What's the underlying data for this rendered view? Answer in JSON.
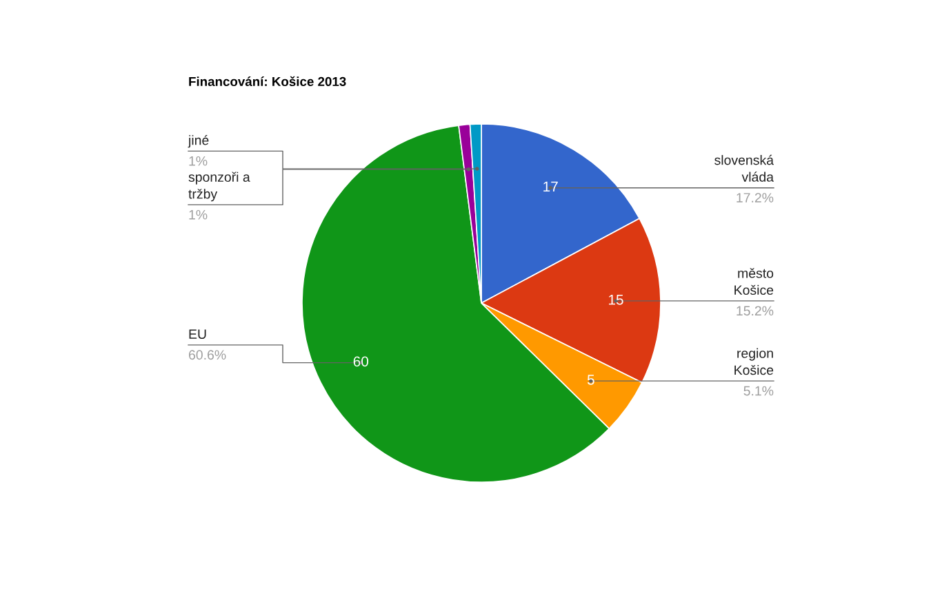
{
  "chart_data": {
    "type": "pie",
    "title": "Financování: Košice 2013",
    "categories": [
      "slovenská\nvláda",
      "město\nKošice",
      "region\nKošice",
      "EU",
      "sponzoři a\ntržby",
      "jiné"
    ],
    "values": [
      17,
      15,
      5,
      60,
      1,
      1
    ],
    "colors": [
      "#3366cc",
      "#dc3912",
      "#ff9900",
      "#109618",
      "#990099",
      "#0099c6"
    ],
    "value_labels": [
      "17",
      "15",
      "5",
      "60",
      null,
      null
    ],
    "annotations": [
      "17.2%",
      "15.2%",
      "5.1%",
      "60.6%",
      "1%",
      "1%"
    ]
  }
}
